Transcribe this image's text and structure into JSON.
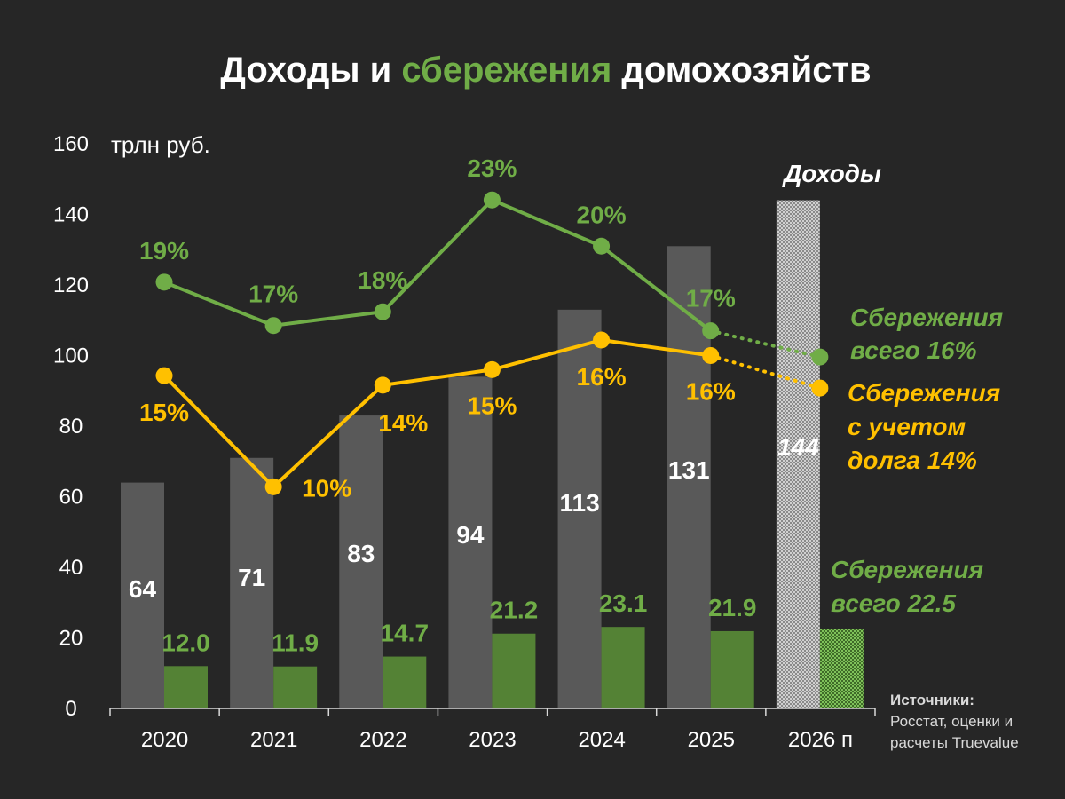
{
  "title": {
    "part1": "Доходы и ",
    "part2": "сбережения",
    "part3": " домохозяйств"
  },
  "colors": {
    "background": "#262626",
    "income_bar": "#595959",
    "savings_bar": "#548235",
    "savings_line": "#70ad47",
    "debt_line": "#ffc000",
    "text": "#ffffff",
    "annotation_green": "#70ad47",
    "forecast_label": "#e8e8e8"
  },
  "chart_data": {
    "type": "bar+line",
    "unit_label": "трлн руб.",
    "ylim": [
      0,
      160
    ],
    "yticks": [
      "0",
      "20",
      "40",
      "60",
      "80",
      "100",
      "120",
      "140",
      "160"
    ],
    "categories": [
      "2020",
      "2021",
      "2022",
      "2023",
      "2024",
      "2025",
      "2026 п"
    ],
    "series": [
      {
        "name": "Доходы",
        "kind": "bar",
        "values": [
          64,
          71,
          83,
          94,
          113,
          131,
          144
        ],
        "labels": [
          "64",
          "71",
          "83",
          "94",
          "113",
          "131",
          "144"
        ]
      },
      {
        "name": "Сбережения",
        "kind": "bar",
        "values": [
          12.0,
          11.9,
          14.7,
          21.2,
          23.1,
          21.9,
          22.5
        ],
        "labels": [
          "12.0",
          "11.9",
          "14.7",
          "21.2",
          "23.1",
          "21.9",
          ""
        ]
      },
      {
        "name": "Сбережения всего, %",
        "kind": "line",
        "values": [
          120.8,
          108.5,
          112.4,
          144.1,
          131.0,
          107.0,
          99.6
        ],
        "labels": [
          "19%",
          "17%",
          "18%",
          "23%",
          "20%",
          "17%",
          ""
        ]
      },
      {
        "name": "Сбережения с учетом долга, %",
        "kind": "line",
        "values": [
          94.3,
          62.8,
          91.6,
          96.0,
          104.4,
          100.0,
          90.8
        ],
        "labels": [
          "15%",
          "10%",
          "14%",
          "15%",
          "16%",
          "16%",
          ""
        ]
      }
    ],
    "forecast_index": 6,
    "annotations": {
      "income": "Доходы",
      "savings_total_line1": "Сбережения",
      "savings_total_line2": "всего 16%",
      "savings_debt_line1": "Сбережения",
      "savings_debt_line2": "с учетом",
      "savings_debt_line3": "долга 14%",
      "savings_bar_line1": "Сбережения",
      "savings_bar_line2": "всего  22.5"
    }
  },
  "source": {
    "heading": "Источники:",
    "line1": "Росстат, оценки и",
    "line2": "расчеты Truevalue"
  }
}
